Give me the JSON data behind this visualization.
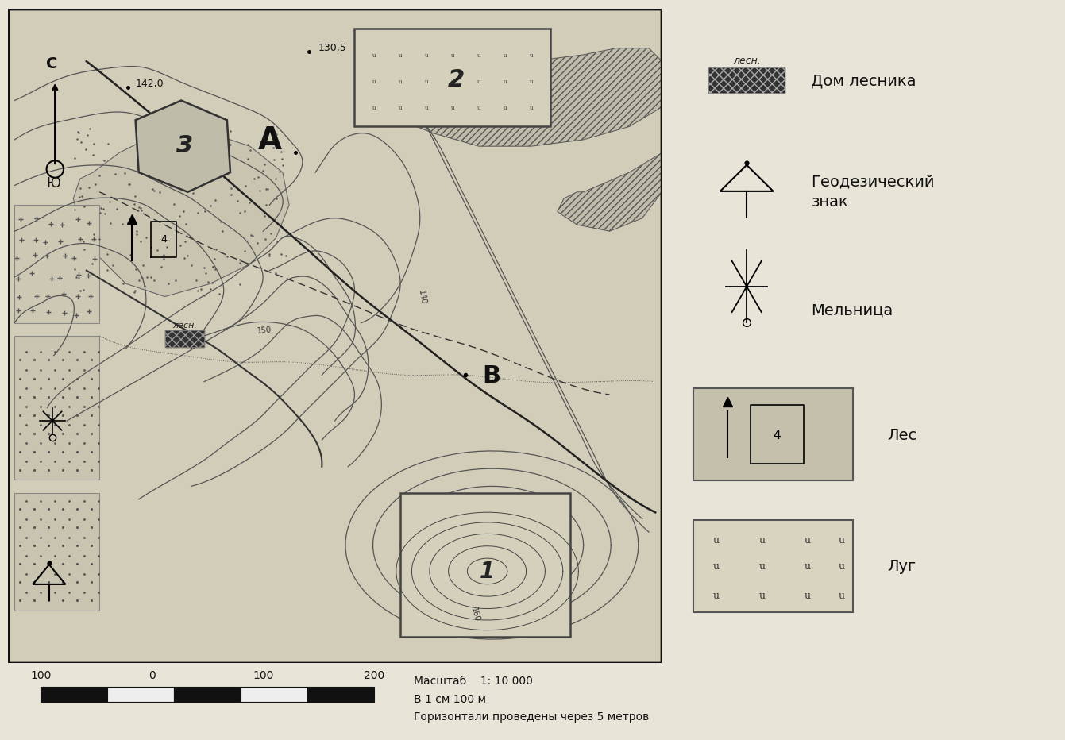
{
  "fig_bg": "#e8e4d8",
  "map_bg": "#d8d4c4",
  "map_border": "#222222",
  "contour_color": "#555555",
  "contour_lw": 0.9,
  "north_label": "С",
  "south_label": "Ю",
  "elev_130": "130,5",
  "elev_142": "142,0",
  "label_150": "150",
  "label_140": "140",
  "label_160": "160",
  "label_A": "A",
  "label_B": "B",
  "label_1": "1",
  "label_2": "2",
  "label_3": "3",
  "lesn_label": "лесн.",
  "scale_line1": "Масштаб    1: 10 000",
  "scale_line2": "В 1 см 100 м",
  "scale_line3": "Горизонтали проведены через 5 метров",
  "legend_lesn": "Дом лесника",
  "legend_geo": "Геодезический\nзнак",
  "legend_mel": "Мельница",
  "legend_les": "Лес",
  "legend_lug": "Луг",
  "lesn_italic": "лесн."
}
